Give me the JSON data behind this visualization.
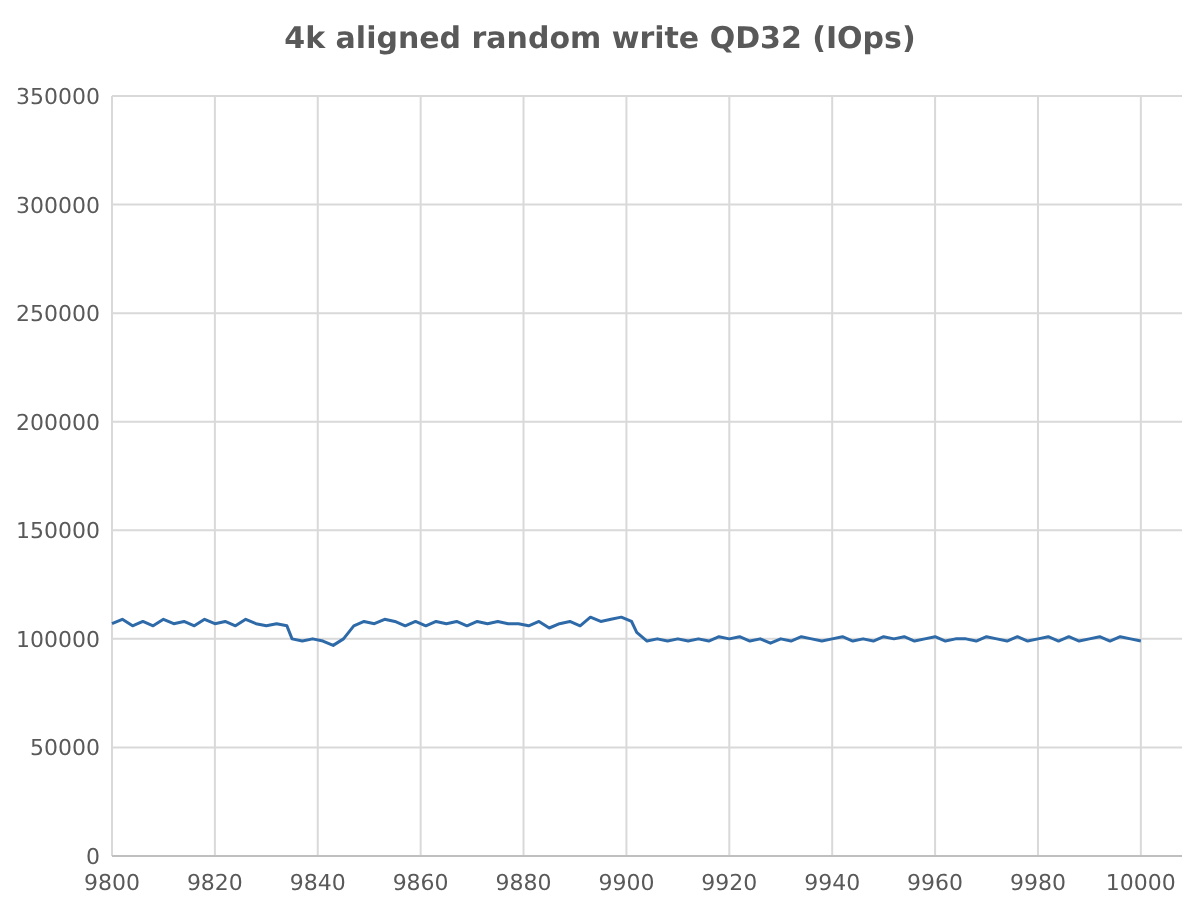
{
  "chart_data": {
    "type": "line",
    "title": "4k aligned random write QD32 (IOps)",
    "x": [
      9800,
      9802,
      9804,
      9806,
      9808,
      9810,
      9812,
      9814,
      9816,
      9818,
      9820,
      9822,
      9824,
      9826,
      9828,
      9830,
      9832,
      9834,
      9835,
      9837,
      9839,
      9841,
      9843,
      9845,
      9847,
      9849,
      9851,
      9853,
      9855,
      9857,
      9859,
      9861,
      9863,
      9865,
      9867,
      9869,
      9871,
      9873,
      9875,
      9877,
      9879,
      9881,
      9883,
      9885,
      9887,
      9889,
      9891,
      9893,
      9895,
      9897,
      9899,
      9901,
      9902,
      9904,
      9906,
      9908,
      9910,
      9912,
      9914,
      9916,
      9918,
      9920,
      9922,
      9924,
      9926,
      9928,
      9930,
      9932,
      9934,
      9936,
      9938,
      9940,
      9942,
      9944,
      9946,
      9948,
      9950,
      9952,
      9954,
      9956,
      9958,
      9960,
      9962,
      9964,
      9966,
      9968,
      9970,
      9972,
      9974,
      9976,
      9978,
      9980,
      9982,
      9984,
      9986,
      9988,
      9990,
      9992,
      9994,
      9996,
      9998,
      10000
    ],
    "series": [
      {
        "color": "#2e6aa8",
        "values": [
          107000,
          109000,
          106000,
          108000,
          106000,
          109000,
          107000,
          108000,
          106000,
          109000,
          107000,
          108000,
          106000,
          109000,
          107000,
          106000,
          107000,
          106000,
          100000,
          99000,
          100000,
          99000,
          97000,
          100000,
          106000,
          108000,
          107000,
          109000,
          108000,
          106000,
          108000,
          106000,
          108000,
          107000,
          108000,
          106000,
          108000,
          107000,
          108000,
          107000,
          107000,
          106000,
          108000,
          105000,
          107000,
          108000,
          106000,
          110000,
          108000,
          109000,
          110000,
          108000,
          103000,
          99000,
          100000,
          99000,
          100000,
          99000,
          100000,
          99000,
          101000,
          100000,
          101000,
          99000,
          100000,
          98000,
          100000,
          99000,
          101000,
          100000,
          99000,
          100000,
          101000,
          99000,
          100000,
          99000,
          101000,
          100000,
          101000,
          99000,
          100000,
          101000,
          99000,
          100000,
          100000,
          99000,
          101000,
          100000,
          99000,
          101000,
          99000,
          100000,
          101000,
          99000,
          101000,
          99000,
          100000,
          101000,
          99000,
          101000,
          100000,
          99000
        ]
      }
    ],
    "xlim": [
      9800,
      10008
    ],
    "xticks": [
      9800,
      9820,
      9840,
      9860,
      9880,
      9900,
      9920,
      9940,
      9960,
      9980,
      10000
    ],
    "ylim": [
      0,
      350000
    ],
    "yticks": [
      0,
      50000,
      100000,
      150000,
      200000,
      250000,
      300000,
      350000
    ],
    "grid": true,
    "marker": "none",
    "line_style": "solid"
  }
}
